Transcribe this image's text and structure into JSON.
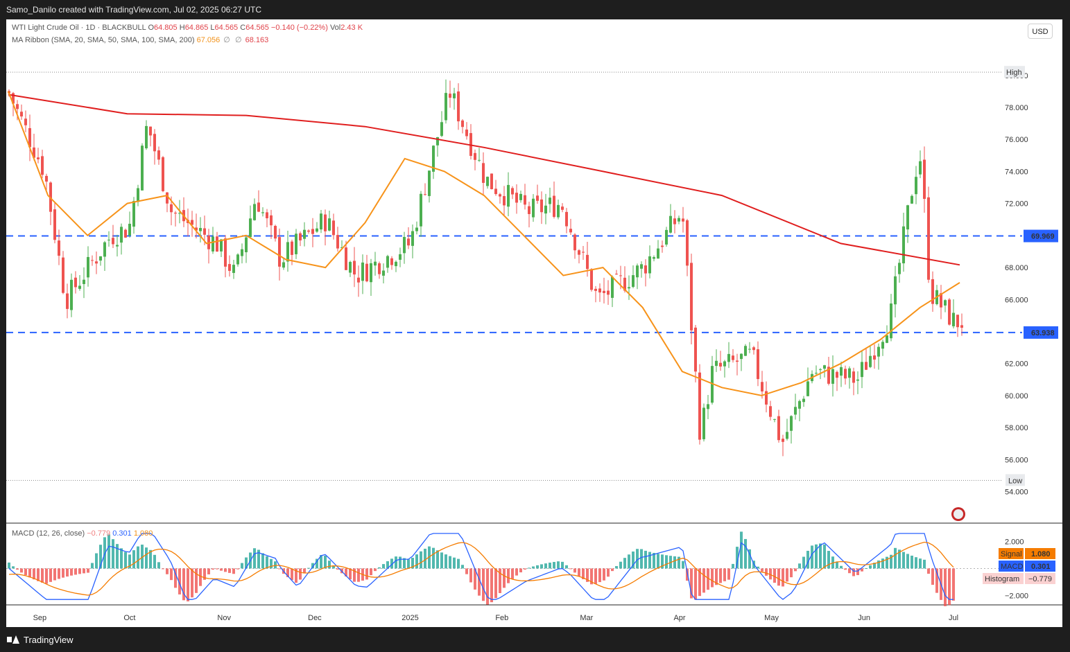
{
  "header": {
    "title": "Samo_Danilo created with TradingView.com, Jul 02, 2025 06:27 UTC"
  },
  "footer": {
    "brand": "TradingView"
  },
  "legend": {
    "symbol": "WTI Light Crude Oil · 1D · BLACKBULL",
    "open_label": "O",
    "open": "64.805",
    "high_label": "H",
    "high": "64.865",
    "low_label": "L",
    "low": "64.565",
    "close_label": "C",
    "close": "64.565",
    "change": "−0.140 (−0.22%)",
    "vol_label": "Vol",
    "vol": "2.43 K",
    "ma_title": "MA Ribbon (SMA, 20, SMA, 50, SMA, 100, SMA, 200)",
    "ma20": "67.056",
    "ma_null1": "∅",
    "ma_null2": "∅",
    "ma200": "68.163",
    "macd_title": "MACD (12, 26, close)",
    "macd_hist": "−0.779",
    "macd_val": "0.301",
    "macd_sig": "1.080"
  },
  "controls": {
    "currency": "USD"
  },
  "price_axis": {
    "ticks": [
      "80.000",
      "78.000",
      "76.000",
      "74.000",
      "72.000",
      "69.969",
      "68.000",
      "66.000",
      "63.938",
      "62.000",
      "60.000",
      "58.000",
      "56.000",
      "54.000"
    ],
    "high_label": "High",
    "low_label": "Low"
  },
  "macd_axis": {
    "ticks": [
      "2.000",
      "−2.000"
    ],
    "signal_label": "Signal",
    "signal_value": "1.080",
    "macd_label": "MACD",
    "macd_value": "0.301",
    "hist_label": "Histogram",
    "hist_value": "−0.779"
  },
  "time_axis": {
    "labels": [
      "Sep",
      "Oct",
      "Nov",
      "Dec",
      "2025",
      "Feb",
      "Mar",
      "Apr",
      "May",
      "Jun",
      "Jul"
    ]
  },
  "colors": {
    "up": "#26a69a",
    "up_candle": "#4caf50",
    "down": "#ef5350",
    "ma20": "#f7931a",
    "ma200": "#e01e1e",
    "level": "#2962ff",
    "macd_line": "#2962ff",
    "signal_line": "#f57c00",
    "hist_up": "#26a69a",
    "hist_down": "#ef5350"
  },
  "chart_data": {
    "type": "candlestick",
    "y_range": [
      53.2,
      80.9
    ],
    "levels": [
      69.969,
      63.938
    ],
    "high": 80.2,
    "low": 54.7,
    "ohlc_anchors": [
      {
        "date": "2024-08-22",
        "close": 79.0
      },
      {
        "date": "2024-09-03",
        "close": 74.0
      },
      {
        "date": "2024-09-10",
        "close": 66.0
      },
      {
        "date": "2024-09-25",
        "close": 70.0
      },
      {
        "date": "2024-10-01",
        "close": 70.5
      },
      {
        "date": "2024-10-07",
        "close": 77.0
      },
      {
        "date": "2024-10-15",
        "close": 71.5
      },
      {
        "date": "2024-10-30",
        "close": 69.5
      },
      {
        "date": "2024-11-05",
        "close": 67.5
      },
      {
        "date": "2024-11-12",
        "close": 72.5
      },
      {
        "date": "2024-11-20",
        "close": 68.5
      },
      {
        "date": "2024-12-05",
        "close": 71.0
      },
      {
        "date": "2024-12-15",
        "close": 67.5
      },
      {
        "date": "2025-01-02",
        "close": 69.5
      },
      {
        "date": "2025-01-10",
        "close": 75.5
      },
      {
        "date": "2025-01-15",
        "close": 79.0
      },
      {
        "date": "2025-01-27",
        "close": 73.5
      },
      {
        "date": "2025-02-10",
        "close": 71.5
      },
      {
        "date": "2025-02-21",
        "close": 72.0
      },
      {
        "date": "2025-03-05",
        "close": 66.0
      },
      {
        "date": "2025-03-20",
        "close": 68.0
      },
      {
        "date": "2025-04-02",
        "close": 71.5
      },
      {
        "date": "2025-04-08",
        "close": 57.5
      },
      {
        "date": "2025-04-12",
        "close": 61.5
      },
      {
        "date": "2025-04-25",
        "close": 62.5
      },
      {
        "date": "2025-05-05",
        "close": 57.0
      },
      {
        "date": "2025-05-15",
        "close": 61.5
      },
      {
        "date": "2025-05-30",
        "close": 61.0
      },
      {
        "date": "2025-06-10",
        "close": 65.0
      },
      {
        "date": "2025-06-18",
        "close": 74.0
      },
      {
        "date": "2025-06-20",
        "close": 75.0
      },
      {
        "date": "2025-06-23",
        "close": 66.5
      },
      {
        "date": "2025-07-01",
        "close": 64.6
      }
    ],
    "ma20": [
      79.0,
      72.5,
      70.0,
      72.0,
      72.5,
      69.5,
      70.0,
      68.5,
      68.0,
      70.8,
      74.8,
      74.0,
      72.5,
      70.0,
      67.5,
      68.0,
      65.5,
      61.5,
      60.5,
      60.0,
      60.8,
      62.0,
      63.5,
      65.5,
      67.056
    ],
    "ma200": [
      78.8,
      77.6,
      77.5,
      76.8,
      75.5,
      74.0,
      72.5,
      69.5,
      68.163
    ]
  }
}
